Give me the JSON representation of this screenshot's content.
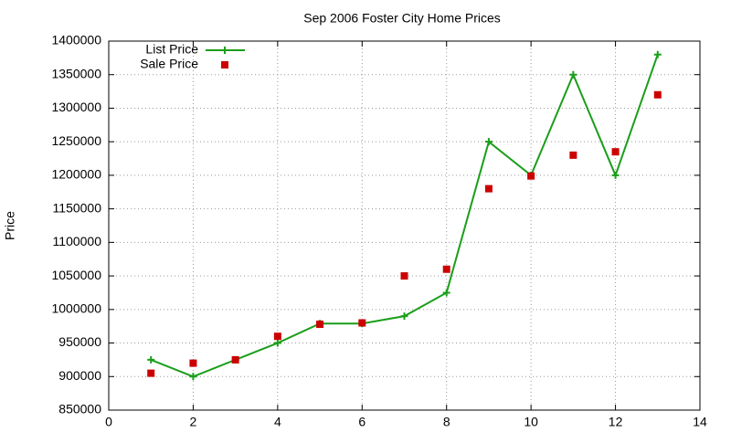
{
  "chart_data": {
    "type": "line",
    "title": "Sep 2006 Foster City Home Prices",
    "ylabel": "Price",
    "x": [
      1,
      2,
      3,
      4,
      5,
      6,
      7,
      8,
      9,
      10,
      11,
      12,
      13
    ],
    "series": [
      {
        "name": "List Price",
        "color": "#1a9e1a",
        "line": true,
        "marker": "plus",
        "values": [
          925000,
          900000,
          925000,
          950000,
          979000,
          979000,
          990000,
          1025000,
          1250000,
          1200000,
          1350000,
          1200000,
          1380000
        ]
      },
      {
        "name": "Sale Price",
        "color": "#cc0000",
        "line": false,
        "marker": "square",
        "values": [
          905000,
          920000,
          925000,
          960000,
          978000,
          980000,
          1050000,
          1060000,
          1180000,
          1199000,
          1230000,
          1235000,
          1320000
        ]
      }
    ],
    "xlim": [
      0,
      14
    ],
    "xticks": [
      0,
      2,
      4,
      6,
      8,
      10,
      12,
      14
    ],
    "ylim": [
      850000,
      1400000
    ],
    "yticks": [
      850000,
      900000,
      950000,
      1000000,
      1050000,
      1100000,
      1150000,
      1200000,
      1250000,
      1300000,
      1350000,
      1400000
    ],
    "grid": true,
    "legend": "top-left"
  }
}
